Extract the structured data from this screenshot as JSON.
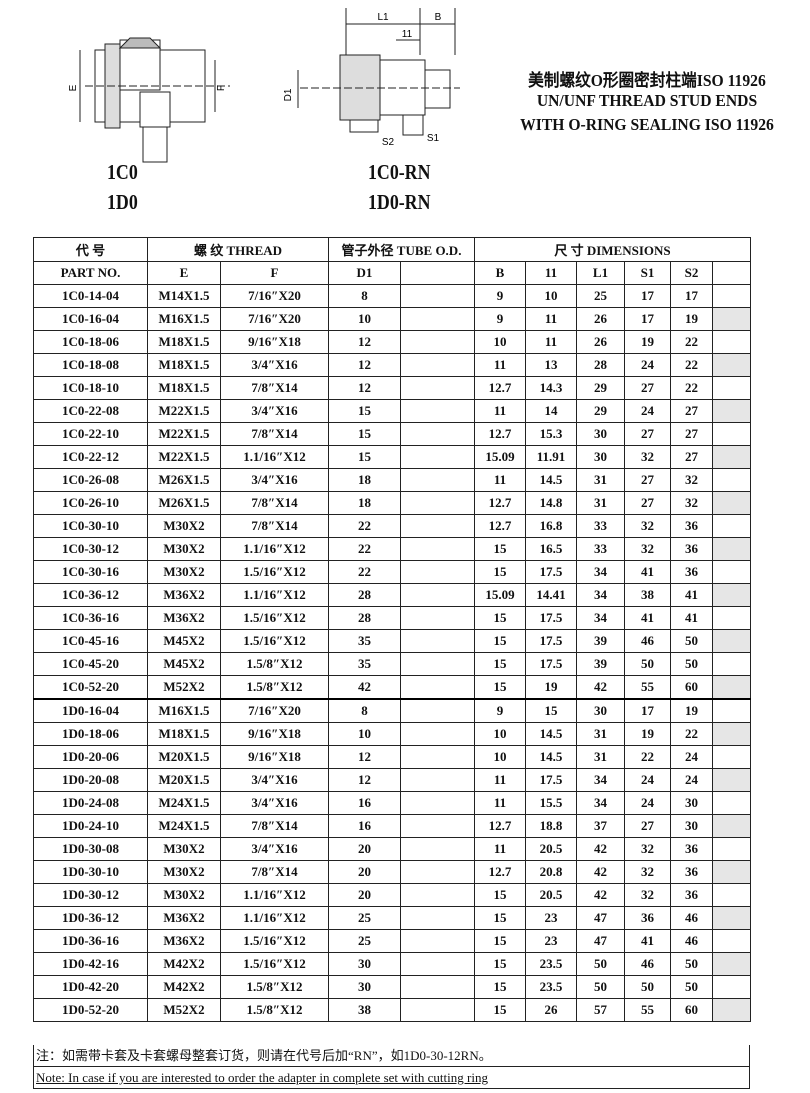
{
  "header": {
    "left_codes": [
      "1C0",
      "1D0"
    ],
    "right_codes": [
      "1C0-RN",
      "1D0-RN"
    ],
    "title": [
      "美制螺纹O形圈密封柱端ISO 11926",
      "UN/UNF THREAD STUD ENDS",
      "WITH O-RING SEALING ISO 11926"
    ],
    "left_diagram_labels": [
      "E",
      "F"
    ],
    "right_diagram_labels": [
      "L1",
      "B",
      "11",
      "D1",
      "S2",
      "S1"
    ]
  },
  "table": {
    "header_groups": [
      "代 号",
      "螺 纹 THREAD",
      "管子外径 TUBE O.D.",
      "尺 寸 DIMENSIONS"
    ],
    "columns": [
      "PART NO.",
      "E",
      "F",
      "D1",
      "B",
      "11",
      "L1",
      "S1",
      "S2"
    ],
    "rows": [
      [
        "1C0-14-04",
        "M14X1.5",
        "7/16″X20",
        "8",
        "9",
        "10",
        "25",
        "17",
        "17"
      ],
      [
        "1C0-16-04",
        "M16X1.5",
        "7/16″X20",
        "10",
        "9",
        "11",
        "26",
        "17",
        "19"
      ],
      [
        "1C0-18-06",
        "M18X1.5",
        "9/16″X18",
        "12",
        "10",
        "11",
        "26",
        "19",
        "22"
      ],
      [
        "1C0-18-08",
        "M18X1.5",
        "3/4″X16",
        "12",
        "11",
        "13",
        "28",
        "24",
        "22"
      ],
      [
        "1C0-18-10",
        "M18X1.5",
        "7/8″X14",
        "12",
        "12.7",
        "14.3",
        "29",
        "27",
        "22"
      ],
      [
        "1C0-22-08",
        "M22X1.5",
        "3/4″X16",
        "15",
        "11",
        "14",
        "29",
        "24",
        "27"
      ],
      [
        "1C0-22-10",
        "M22X1.5",
        "7/8″X14",
        "15",
        "12.7",
        "15.3",
        "30",
        "27",
        "27"
      ],
      [
        "1C0-22-12",
        "M22X1.5",
        "1.1/16″X12",
        "15",
        "15.09",
        "11.91",
        "30",
        "32",
        "27"
      ],
      [
        "1C0-26-08",
        "M26X1.5",
        "3/4″X16",
        "18",
        "11",
        "14.5",
        "31",
        "27",
        "32"
      ],
      [
        "1C0-26-10",
        "M26X1.5",
        "7/8″X14",
        "18",
        "12.7",
        "14.8",
        "31",
        "27",
        "32"
      ],
      [
        "1C0-30-10",
        "M30X2",
        "7/8″X14",
        "22",
        "12.7",
        "16.8",
        "33",
        "32",
        "36"
      ],
      [
        "1C0-30-12",
        "M30X2",
        "1.1/16″X12",
        "22",
        "15",
        "16.5",
        "33",
        "32",
        "36"
      ],
      [
        "1C0-30-16",
        "M30X2",
        "1.5/16″X12",
        "22",
        "15",
        "17.5",
        "34",
        "41",
        "36"
      ],
      [
        "1C0-36-12",
        "M36X2",
        "1.1/16″X12",
        "28",
        "15.09",
        "14.41",
        "34",
        "38",
        "41"
      ],
      [
        "1C0-36-16",
        "M36X2",
        "1.5/16″X12",
        "28",
        "15",
        "17.5",
        "34",
        "41",
        "41"
      ],
      [
        "1C0-45-16",
        "M45X2",
        "1.5/16″X12",
        "35",
        "15",
        "17.5",
        "39",
        "46",
        "50"
      ],
      [
        "1C0-45-20",
        "M45X2",
        "1.5/8″X12",
        "35",
        "15",
        "17.5",
        "39",
        "50",
        "50"
      ],
      [
        "1C0-52-20",
        "M52X2",
        "1.5/8″X12",
        "42",
        "15",
        "19",
        "42",
        "55",
        "60"
      ],
      [
        "1D0-16-04",
        "M16X1.5",
        "7/16″X20",
        "8",
        "9",
        "15",
        "30",
        "17",
        "19"
      ],
      [
        "1D0-18-06",
        "M18X1.5",
        "9/16″X18",
        "10",
        "10",
        "14.5",
        "31",
        "19",
        "22"
      ],
      [
        "1D0-20-06",
        "M20X1.5",
        "9/16″X18",
        "12",
        "10",
        "14.5",
        "31",
        "22",
        "24"
      ],
      [
        "1D0-20-08",
        "M20X1.5",
        "3/4″X16",
        "12",
        "11",
        "17.5",
        "34",
        "24",
        "24"
      ],
      [
        "1D0-24-08",
        "M24X1.5",
        "3/4″X16",
        "16",
        "11",
        "15.5",
        "34",
        "24",
        "30"
      ],
      [
        "1D0-24-10",
        "M24X1.5",
        "7/8″X14",
        "16",
        "12.7",
        "18.8",
        "37",
        "27",
        "30"
      ],
      [
        "1D0-30-08",
        "M30X2",
        "3/4″X16",
        "20",
        "11",
        "20.5",
        "42",
        "32",
        "36"
      ],
      [
        "1D0-30-10",
        "M30X2",
        "7/8″X14",
        "20",
        "12.7",
        "20.8",
        "42",
        "32",
        "36"
      ],
      [
        "1D0-30-12",
        "M30X2",
        "1.1/16″X12",
        "20",
        "15",
        "20.5",
        "42",
        "32",
        "36"
      ],
      [
        "1D0-36-12",
        "M36X2",
        "1.1/16″X12",
        "25",
        "15",
        "23",
        "47",
        "36",
        "46"
      ],
      [
        "1D0-36-16",
        "M36X2",
        "1.5/16″X12",
        "25",
        "15",
        "23",
        "47",
        "41",
        "46"
      ],
      [
        "1D0-42-16",
        "M42X2",
        "1.5/16″X12",
        "30",
        "15",
        "23.5",
        "50",
        "46",
        "50"
      ],
      [
        "1D0-42-20",
        "M42X2",
        "1.5/8″X12",
        "30",
        "15",
        "23.5",
        "50",
        "50",
        "50"
      ],
      [
        "1D0-52-20",
        "M52X2",
        "1.5/8″X12",
        "38",
        "15",
        "26",
        "57",
        "55",
        "60"
      ]
    ]
  },
  "notes": [
    "注：如需带卡套及卡套螺母整套订货，则请在代号后加“RN”，如1D0-30-12RN。",
    "Note: In case if you are interested to order the adapter in complete set with cutting ring"
  ]
}
